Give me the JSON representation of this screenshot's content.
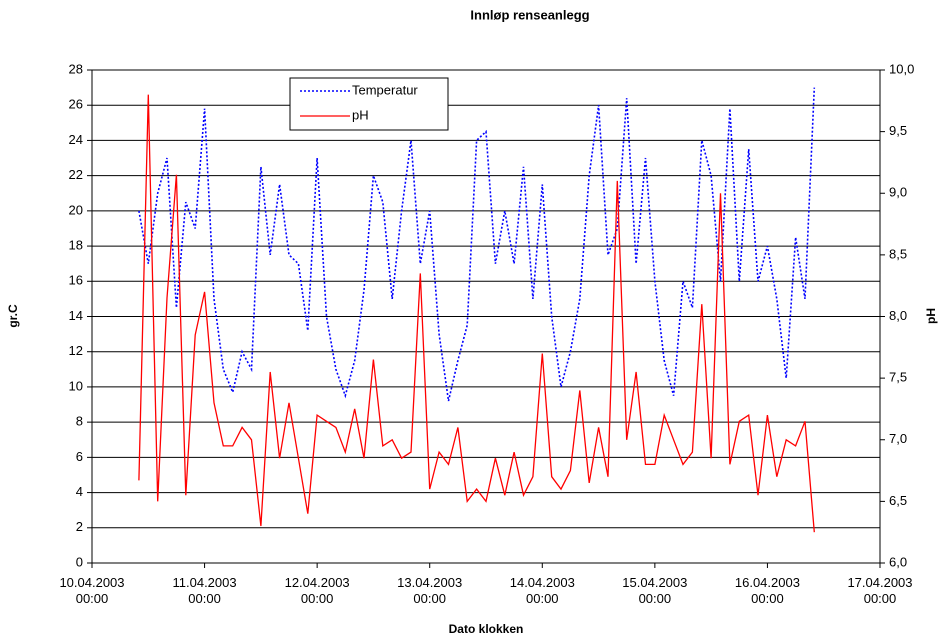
{
  "chart_data": {
    "type": "line",
    "title": "Innløp renseanlegg",
    "x_label": "Dato klokken",
    "y_label": "gr.C",
    "y2_label": "pH",
    "x": [
      "2003-04-10T10:00",
      "2003-04-10T12:00",
      "2003-04-10T14:00",
      "2003-04-10T16:00",
      "2003-04-10T18:00",
      "2003-04-10T20:00",
      "2003-04-10T22:00",
      "2003-04-11T00:00",
      "2003-04-11T02:00",
      "2003-04-11T04:00",
      "2003-04-11T06:00",
      "2003-04-11T08:00",
      "2003-04-11T10:00",
      "2003-04-11T12:00",
      "2003-04-11T14:00",
      "2003-04-11T16:00",
      "2003-04-11T18:00",
      "2003-04-11T20:00",
      "2003-04-11T22:00",
      "2003-04-12T00:00",
      "2003-04-12T02:00",
      "2003-04-12T04:00",
      "2003-04-12T06:00",
      "2003-04-12T08:00",
      "2003-04-12T10:00",
      "2003-04-12T12:00",
      "2003-04-12T14:00",
      "2003-04-12T16:00",
      "2003-04-12T18:00",
      "2003-04-12T20:00",
      "2003-04-12T22:00",
      "2003-04-13T00:00",
      "2003-04-13T02:00",
      "2003-04-13T04:00",
      "2003-04-13T06:00",
      "2003-04-13T08:00",
      "2003-04-13T10:00",
      "2003-04-13T12:00",
      "2003-04-13T14:00",
      "2003-04-13T16:00",
      "2003-04-13T18:00",
      "2003-04-13T20:00",
      "2003-04-13T22:00",
      "2003-04-14T00:00",
      "2003-04-14T02:00",
      "2003-04-14T04:00",
      "2003-04-14T06:00",
      "2003-04-14T08:00",
      "2003-04-14T10:00",
      "2003-04-14T12:00",
      "2003-04-14T14:00",
      "2003-04-14T16:00",
      "2003-04-14T18:00",
      "2003-04-14T20:00",
      "2003-04-14T22:00",
      "2003-04-15T00:00",
      "2003-04-15T02:00",
      "2003-04-15T04:00",
      "2003-04-15T06:00",
      "2003-04-15T08:00",
      "2003-04-15T10:00",
      "2003-04-15T12:00",
      "2003-04-15T14:00",
      "2003-04-15T16:00",
      "2003-04-15T18:00",
      "2003-04-15T20:00",
      "2003-04-15T22:00",
      "2003-04-16T00:00",
      "2003-04-16T02:00",
      "2003-04-16T04:00",
      "2003-04-16T06:00",
      "2003-04-16T08:00",
      "2003-04-16T10:00"
    ],
    "series": [
      {
        "name": "Temperatur",
        "color": "#0000ff",
        "dashed": true,
        "axis": "y",
        "values": [
          20,
          17,
          21,
          23,
          14.5,
          20.5,
          19,
          25.8,
          15,
          11,
          9.7,
          12,
          11,
          22.5,
          17.5,
          21.5,
          17.5,
          17,
          13.2,
          23,
          14,
          11,
          9.5,
          11.5,
          15.5,
          22,
          20.5,
          15,
          20,
          24,
          17,
          20,
          13,
          9.2,
          11.5,
          13.5,
          24,
          24.5,
          17,
          20,
          17,
          22.5,
          15,
          21.5,
          14,
          10,
          12,
          15,
          22,
          26,
          17.5,
          19,
          26.4,
          17,
          23,
          16,
          11.5,
          9.5,
          16,
          14.5,
          24,
          22,
          16,
          25.8,
          16,
          23.5,
          16,
          18,
          15,
          10.5,
          18.5,
          15,
          27
        ]
      },
      {
        "name": "pH",
        "color": "#ff0000",
        "dashed": false,
        "axis": "y2",
        "values": [
          6.67,
          9.8,
          6.5,
          8.15,
          9.15,
          6.55,
          7.85,
          8.2,
          7.3,
          6.95,
          6.95,
          7.1,
          7.0,
          6.3,
          7.55,
          6.85,
          7.3,
          6.85,
          6.4,
          7.2,
          7.15,
          7.1,
          6.9,
          7.25,
          6.85,
          7.65,
          6.95,
          7.0,
          6.85,
          6.9,
          8.35,
          6.6,
          6.9,
          6.8,
          7.1,
          6.5,
          6.6,
          6.5,
          6.85,
          6.55,
          6.9,
          6.55,
          6.7,
          7.7,
          6.7,
          6.6,
          6.75,
          7.4,
          6.65,
          7.1,
          6.7,
          9.1,
          7.0,
          7.55,
          6.8,
          6.8,
          7.2,
          7.0,
          6.8,
          6.9,
          8.1,
          6.85,
          9.0,
          6.8,
          7.15,
          7.2,
          6.55,
          7.2,
          6.7,
          7.0,
          6.95,
          7.15,
          6.25
        ]
      }
    ],
    "xlim": [
      "2003-04-10T00:00",
      "2003-04-17T00:00"
    ],
    "xticks": [
      {
        "value": "2003-04-10T00:00",
        "label": "10.04.2003 00:00"
      },
      {
        "value": "2003-04-11T00:00",
        "label": "11.04.2003 00:00"
      },
      {
        "value": "2003-04-12T00:00",
        "label": "12.04.2003 00:00"
      },
      {
        "value": "2003-04-13T00:00",
        "label": "13.04.2003 00:00"
      },
      {
        "value": "2003-04-14T00:00",
        "label": "14.04.2003 00:00"
      },
      {
        "value": "2003-04-15T00:00",
        "label": "15.04.2003 00:00"
      },
      {
        "value": "2003-04-16T00:00",
        "label": "16.04.2003 00:00"
      },
      {
        "value": "2003-04-17T00:00",
        "label": "17.04.2003 00:00"
      }
    ],
    "ylim": [
      0,
      28
    ],
    "yticks": [
      0,
      2,
      4,
      6,
      8,
      10,
      12,
      14,
      16,
      18,
      20,
      22,
      24,
      26,
      28
    ],
    "y2lim": [
      6,
      10
    ],
    "y2ticks": [
      {
        "value": 6,
        "label": "6,0"
      },
      {
        "value": 6.5,
        "label": "6,5"
      },
      {
        "value": 7,
        "label": "7,0"
      },
      {
        "value": 7.5,
        "label": "7,5"
      },
      {
        "value": 8,
        "label": "8,0"
      },
      {
        "value": 8.5,
        "label": "8,5"
      },
      {
        "value": 9,
        "label": "9,0"
      },
      {
        "value": 9.5,
        "label": "9,5"
      },
      {
        "value": 10,
        "label": "10,0"
      }
    ],
    "grid": true,
    "legend": "top-left"
  }
}
